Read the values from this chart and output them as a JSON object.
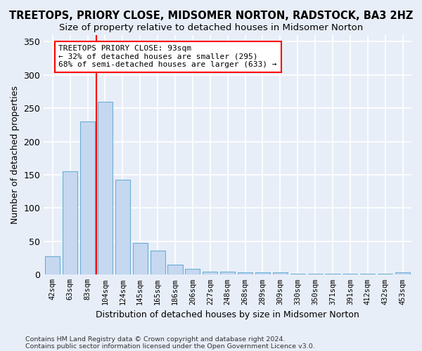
{
  "title": "TREETOPS, PRIORY CLOSE, MIDSOMER NORTON, RADSTOCK, BA3 2HZ",
  "subtitle": "Size of property relative to detached houses in Midsomer Norton",
  "xlabel": "Distribution of detached houses by size in Midsomer Norton",
  "ylabel": "Number of detached properties",
  "categories": [
    "42sqm",
    "63sqm",
    "83sqm",
    "104sqm",
    "124sqm",
    "145sqm",
    "165sqm",
    "186sqm",
    "206sqm",
    "227sqm",
    "248sqm",
    "268sqm",
    "289sqm",
    "309sqm",
    "330sqm",
    "350sqm",
    "371sqm",
    "391sqm",
    "412sqm",
    "432sqm",
    "453sqm"
  ],
  "values": [
    28,
    155,
    230,
    260,
    143,
    48,
    36,
    15,
    9,
    5,
    5,
    4,
    4,
    3,
    1,
    1,
    1,
    1,
    1,
    1,
    4
  ],
  "bar_color": "#c5d8f0",
  "bar_edge_color": "#6baed6",
  "red_line_x": 2.5,
  "annotation_text": "TREETOPS PRIORY CLOSE: 93sqm\n← 32% of detached houses are smaller (295)\n68% of semi-detached houses are larger (633) →",
  "footer_line1": "Contains HM Land Registry data © Crown copyright and database right 2024.",
  "footer_line2": "Contains public sector information licensed under the Open Government Licence v3.0.",
  "ylim": [
    0,
    360
  ],
  "yticks": [
    0,
    50,
    100,
    150,
    200,
    250,
    300,
    350
  ],
  "bg_color": "#e8eef8",
  "fig_color": "#e8eef8",
  "title_fontsize": 10.5,
  "subtitle_fontsize": 9.5
}
